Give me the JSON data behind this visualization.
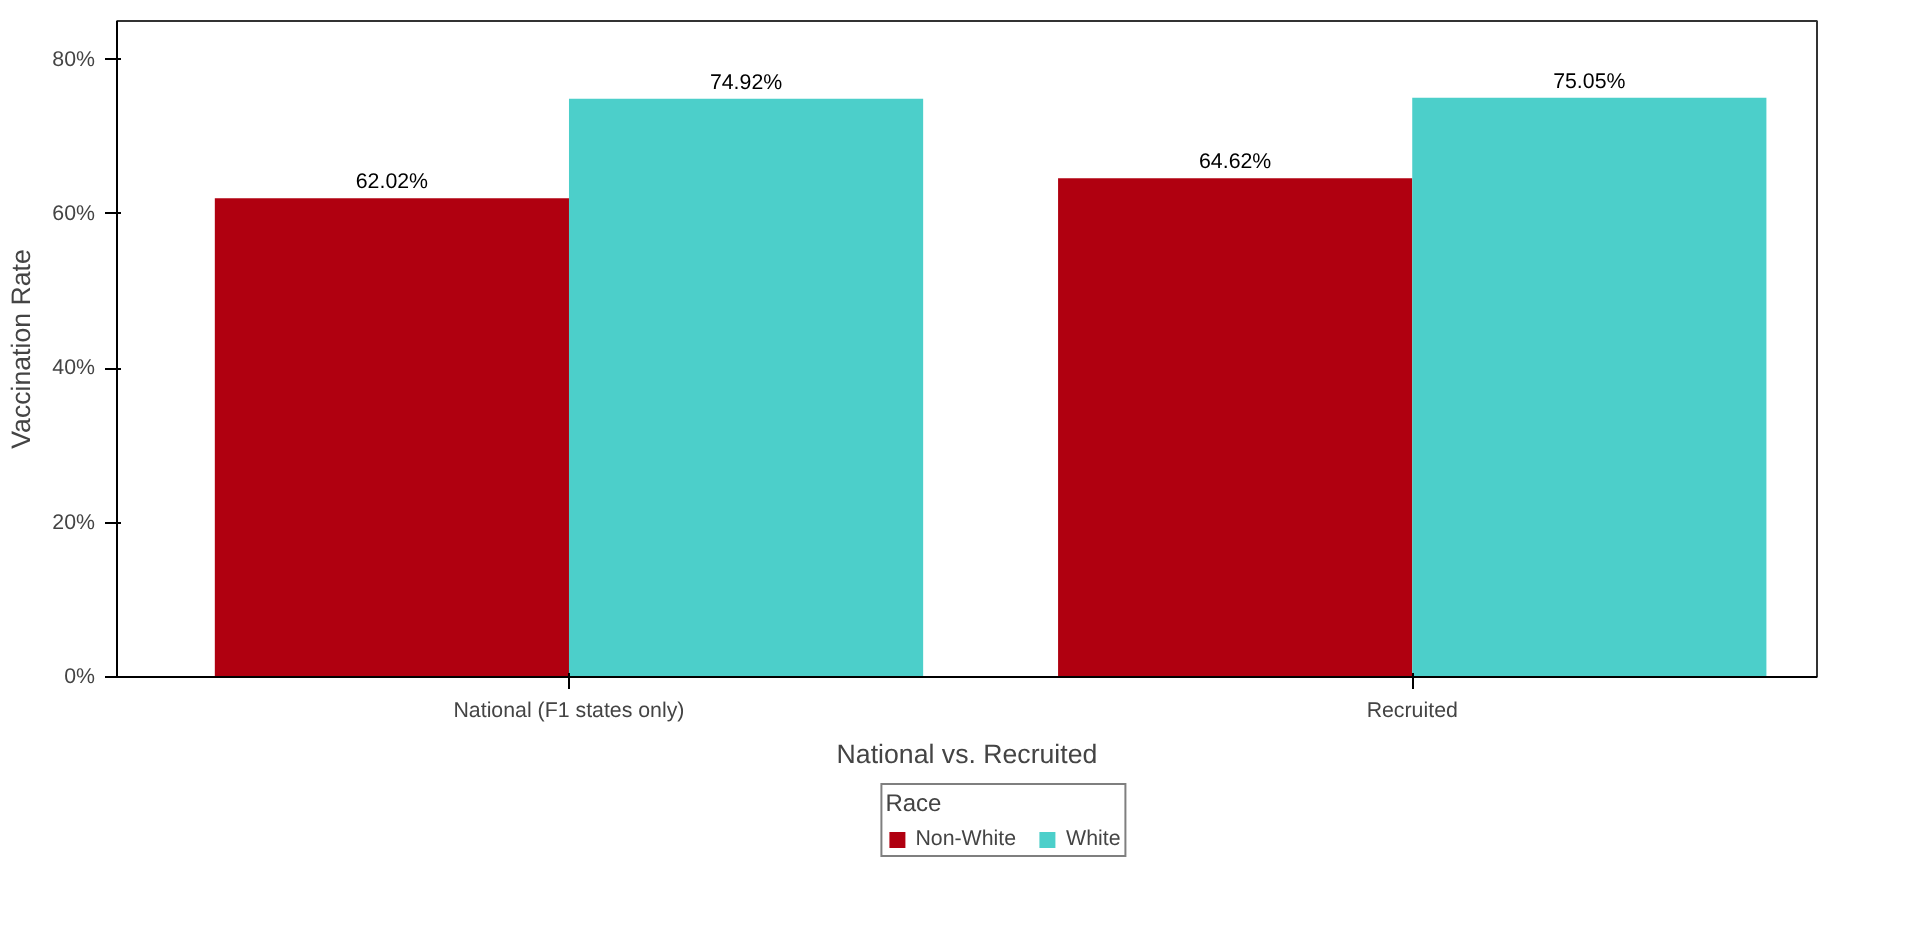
{
  "chart_data": {
    "type": "bar",
    "xlabel": "National vs. Recruited",
    "ylabel": "Vaccination Rate",
    "legend_title": "Race",
    "categories": [
      "National (F1 states only)",
      "Recruited"
    ],
    "series": [
      {
        "name": "Non-White",
        "color": "#b00010",
        "values": [
          62.02,
          64.62
        ]
      },
      {
        "name": "White",
        "color": "#4ccfca",
        "values": [
          74.92,
          75.05
        ]
      }
    ],
    "value_labels": [
      [
        "62.02%",
        "64.62%"
      ],
      [
        "74.92%",
        "75.05%"
      ]
    ],
    "ylim": [
      0,
      85
    ],
    "yticks": [
      {
        "value": 0,
        "label": "0%"
      },
      {
        "value": 20,
        "label": "20%"
      },
      {
        "value": 40,
        "label": "40%"
      },
      {
        "value": 60,
        "label": "60%"
      },
      {
        "value": 80,
        "label": "80%"
      }
    ],
    "grid": false,
    "legend": "bottom"
  }
}
